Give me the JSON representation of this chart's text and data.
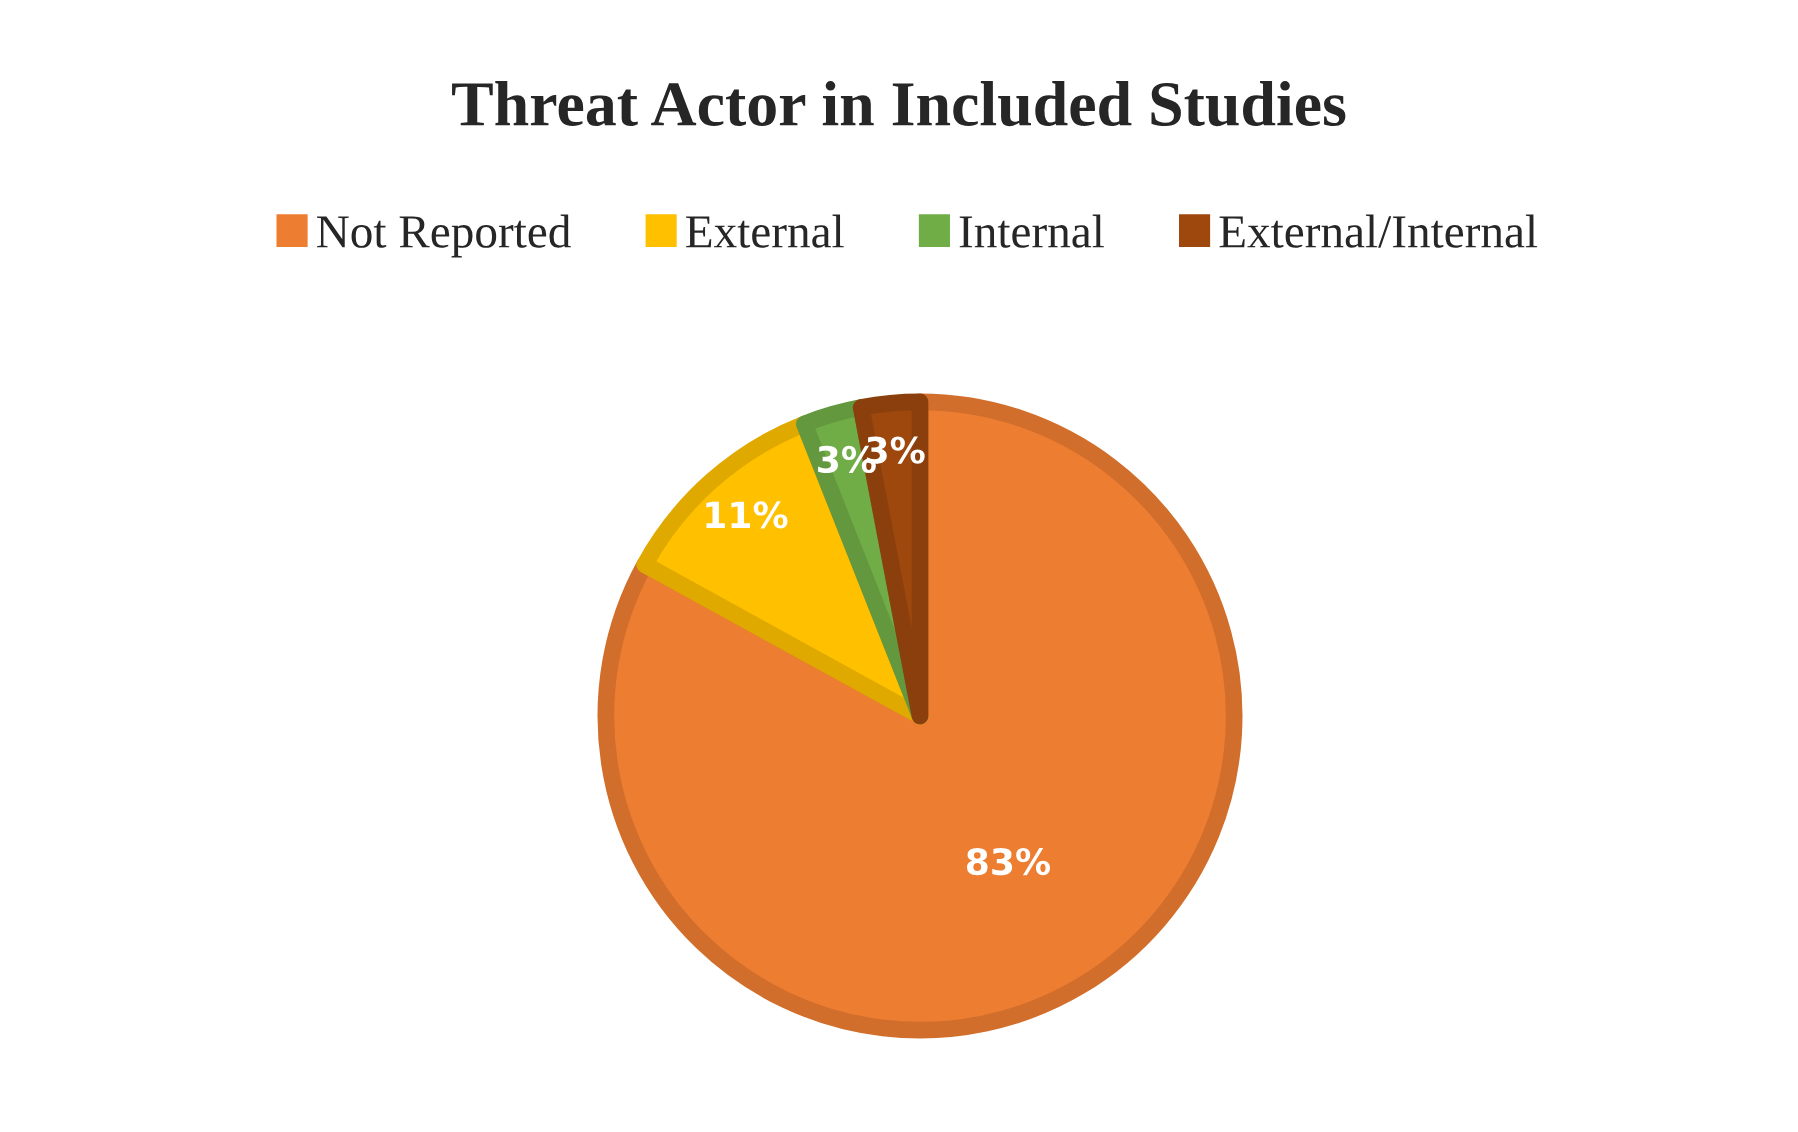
{
  "chart_data": {
    "type": "pie",
    "title": "Threat Actor in Included Studies",
    "categories": [
      "Not Reported",
      "External",
      "Internal",
      "External/Internal"
    ],
    "values": [
      83,
      11,
      3,
      3
    ],
    "colors": [
      "#ed7d31",
      "#ffc000",
      "#70ad47",
      "#9e480e"
    ],
    "value_labels": [
      "83%",
      "11%",
      "3%",
      "3%"
    ],
    "legend": "top"
  }
}
